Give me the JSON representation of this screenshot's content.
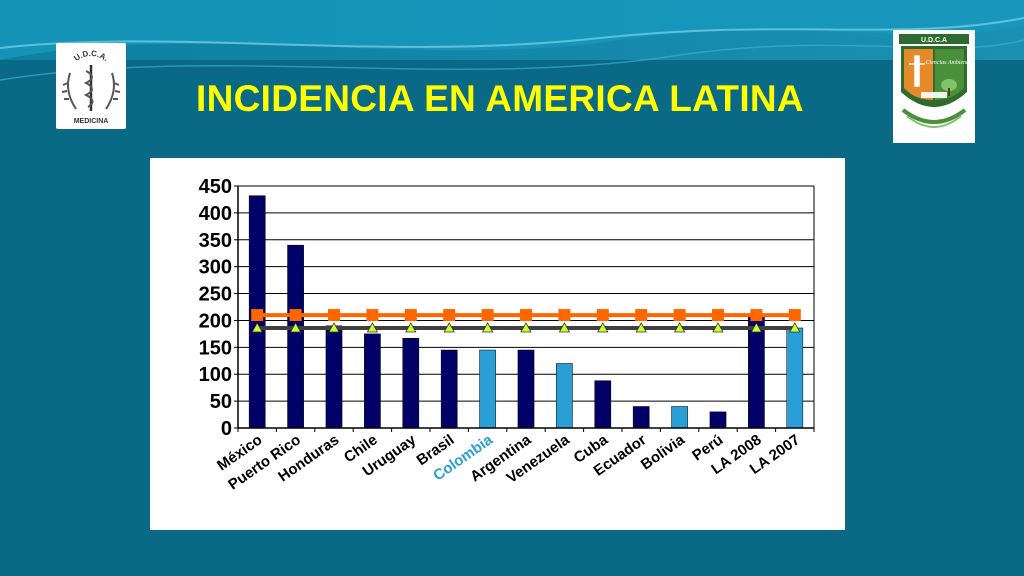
{
  "slide": {
    "title": "INCIDENCIA EN AMERICA LATINA",
    "logo_left_text_top": "U.D.C.A.",
    "logo_left_text_bottom": "MEDICINA",
    "logo_right_text_top": "U.D.C.A",
    "logo_right_text_side": "Ciencias Ambiental",
    "colors": {
      "background": "#0a6a86",
      "title": "#ffff00"
    }
  },
  "chart_data": {
    "type": "bar",
    "categories": [
      "México",
      "Puerto Rico",
      "Honduras",
      "Chile",
      "Uruguay",
      "Brasil",
      "Colombia",
      "Argentina",
      "Venezuela",
      "Cuba",
      "Ecuador",
      "Bolivia",
      "Perú",
      "LA 2008",
      "LA 2007"
    ],
    "highlighted_category": "Colombia",
    "values": [
      432,
      340,
      190,
      175,
      167,
      145,
      145,
      145,
      120,
      88,
      40,
      40,
      30,
      210,
      186
    ],
    "bar_colors": [
      "#000066",
      "#000066",
      "#000066",
      "#000066",
      "#000066",
      "#000066",
      "#2a9fd6",
      "#000066",
      "#2a9fd6",
      "#000066",
      "#000066",
      "#2a9fd6",
      "#000066",
      "#000066",
      "#2a9fd6"
    ],
    "reference_lines": [
      {
        "value": 210,
        "color": "#ff6600",
        "marker": "square"
      },
      {
        "value": 186,
        "color": "#404040",
        "marker": "triangle",
        "marker_fill": "#ccff33"
      }
    ],
    "ylim": [
      0,
      450
    ],
    "yticks": [
      0,
      50,
      100,
      150,
      200,
      250,
      300,
      350,
      400,
      450
    ],
    "grid": true
  }
}
